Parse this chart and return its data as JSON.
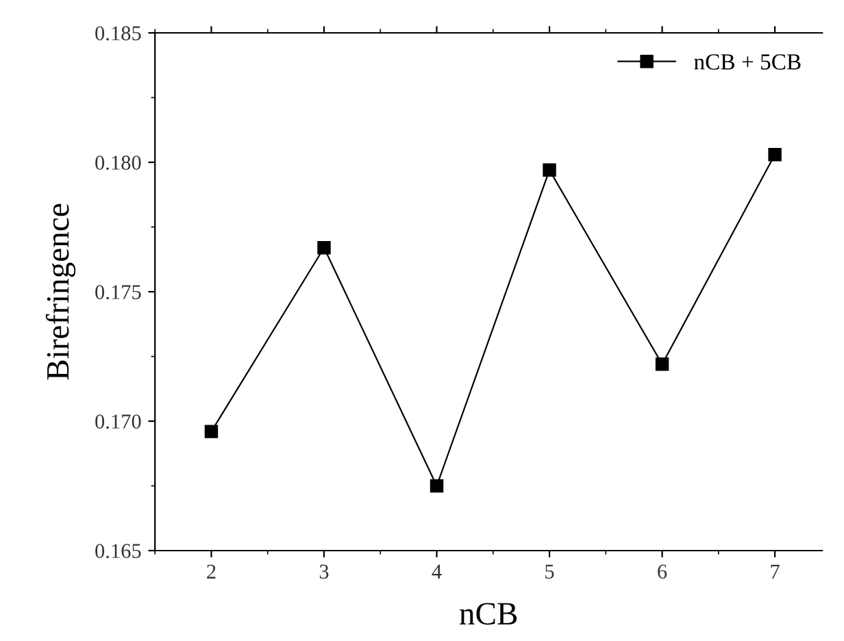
{
  "chart_data": {
    "type": "line",
    "xlabel": "nCB",
    "ylabel": "Birefringence",
    "x": [
      2,
      3,
      4,
      5,
      6,
      7
    ],
    "series": [
      {
        "name": "nCB + 5CB",
        "color": "#000000",
        "values": [
          0.1696,
          0.1767,
          0.1675,
          0.1797,
          0.1722,
          0.1803
        ]
      }
    ],
    "xlim": [
      1.5,
      7.42
    ],
    "xticks": [
      2,
      3,
      4,
      5,
      6,
      7
    ],
    "ylim": [
      0.165,
      0.185
    ],
    "yticks": [
      {
        "value": 0.165,
        "label": "0.165"
      },
      {
        "value": 0.17,
        "label": "0.170"
      },
      {
        "value": 0.175,
        "label": "0.175"
      },
      {
        "value": 0.18,
        "label": "0.180"
      },
      {
        "value": 0.185,
        "label": "0.185"
      }
    ],
    "marker": "square",
    "line_style": "solid",
    "legend": "top right",
    "grid": false
  }
}
